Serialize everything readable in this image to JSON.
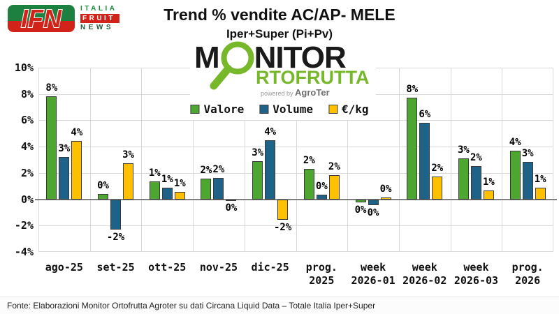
{
  "header": {
    "title": "Trend % vendite AC/AP- MELE",
    "subtitle": "Iper+Super (Pi+Pv)"
  },
  "brand": {
    "ifn": {
      "acronym": "IFN",
      "italia": "ITALIA",
      "fruit": "FRUIT",
      "news": "NEWS"
    },
    "monitor": {
      "m": "M",
      "nitor": "NITOR",
      "line2": "RTOFRUTTA",
      "powered_by": "powered by ",
      "agroter": "AgroTer",
      "green": "#76B82A"
    }
  },
  "legend": [
    {
      "label": "Valore",
      "color": "#4CA62F"
    },
    {
      "label": "Volume",
      "color": "#1F6287"
    },
    {
      "label": "€/kg",
      "color": "#FFC000"
    }
  ],
  "chart_data": {
    "type": "bar",
    "title": "Trend % vendite AC/AP- MELE",
    "subtitle": "Iper+Super (Pi+Pv)",
    "categories": [
      "ago-25",
      "set-25",
      "ott-25",
      "nov-25",
      "dic-25",
      "prog.\n2025",
      "week\n2026-01",
      "week\n2026-02",
      "week\n2026-03",
      "prog.\n2026"
    ],
    "series": [
      {
        "name": "Valore",
        "color": "#4CA62F",
        "values": [
          7.8,
          0.4,
          1.35,
          1.55,
          2.9,
          2.3,
          -0.25,
          7.7,
          3.1,
          3.7
        ],
        "labels": [
          "8%",
          "0%",
          "1%",
          "2%",
          "3%",
          "2%",
          "0%",
          "8%",
          "3%",
          "4%"
        ]
      },
      {
        "name": "Volume",
        "color": "#1F6287",
        "values": [
          3.2,
          -2.3,
          0.9,
          1.6,
          4.5,
          0.35,
          -0.45,
          5.8,
          2.5,
          2.85
        ],
        "labels": [
          "3%",
          "-2%",
          "1%",
          "2%",
          "4%",
          "0%",
          "0%",
          "6%",
          "2%",
          "3%"
        ]
      },
      {
        "name": "€/kg",
        "color": "#FFC000",
        "values": [
          4.45,
          2.75,
          0.55,
          -0.07,
          -1.55,
          1.85,
          0.15,
          1.75,
          0.65,
          0.9
        ],
        "labels": [
          "4%",
          "3%",
          "1%",
          "0%",
          "-2%",
          "2%",
          "0%",
          "2%",
          "1%",
          "1%"
        ]
      }
    ],
    "ylim": [
      -4,
      10
    ],
    "ytick_step": 2,
    "ytick_suffix": "%",
    "grid": true,
    "legend_position": "top-center"
  },
  "footer": {
    "source": "Fonte: Elaborazioni Monitor Ortofrutta Agroter su dati Circana Liquid Data – Totale Italia Iper+Super"
  }
}
